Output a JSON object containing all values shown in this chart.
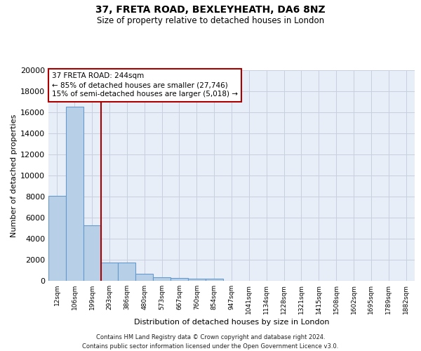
{
  "title_line1": "37, FRETA ROAD, BEXLEYHEATH, DA6 8NZ",
  "title_line2": "Size of property relative to detached houses in London",
  "xlabel": "Distribution of detached houses by size in London",
  "ylabel": "Number of detached properties",
  "bar_categories": [
    "12sqm",
    "106sqm",
    "199sqm",
    "293sqm",
    "386sqm",
    "480sqm",
    "573sqm",
    "667sqm",
    "760sqm",
    "854sqm",
    "947sqm",
    "1041sqm",
    "1134sqm",
    "1228sqm",
    "1321sqm",
    "1415sqm",
    "1508sqm",
    "1602sqm",
    "1695sqm",
    "1789sqm",
    "1882sqm"
  ],
  "bar_values": [
    8100,
    16500,
    5300,
    1750,
    1750,
    650,
    350,
    270,
    220,
    180,
    0,
    0,
    0,
    0,
    0,
    0,
    0,
    0,
    0,
    0,
    0
  ],
  "bar_color": "#b8cfe8",
  "bar_edge_color": "#6699cc",
  "vline_color": "#aa0000",
  "annotation_text": "37 FRETA ROAD: 244sqm\n← 85% of detached houses are smaller (27,746)\n15% of semi-detached houses are larger (5,018) →",
  "ylim": [
    0,
    20000
  ],
  "yticks": [
    0,
    2000,
    4000,
    6000,
    8000,
    10000,
    12000,
    14000,
    16000,
    18000,
    20000
  ],
  "footer_line1": "Contains HM Land Registry data © Crown copyright and database right 2024.",
  "footer_line2": "Contains public sector information licensed under the Open Government Licence v3.0.",
  "bg_color": "#e8eef8",
  "grid_color": "#c8d0e0",
  "vline_x": 2.5
}
